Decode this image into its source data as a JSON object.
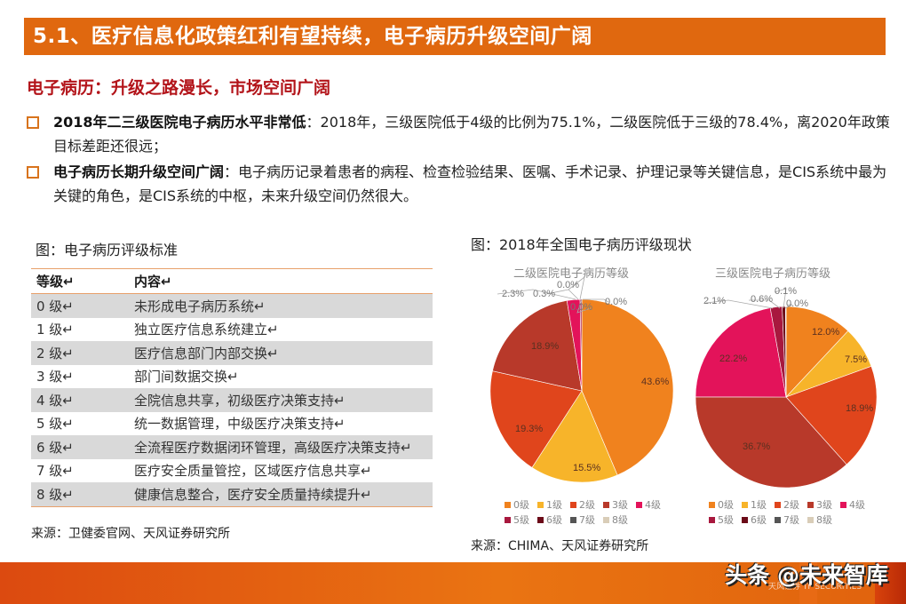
{
  "header": {
    "title": "5.1、医疗信息化政策红利有望持续，电子病历升级空间广阔"
  },
  "subtitle": "电子病历：升级之路漫长，市场空间广阔",
  "bullets": [
    {
      "bold": "2018年二三级医院电子病历水平非常低",
      "text": "：2018年，三级医院低于4级的比例为75.1%，二级医院低于三级的78.4%，离2020年政策目标差距还很远；"
    },
    {
      "bold": "电子病历长期升级空间广阔",
      "text": "：电子病历记录着患者的病程、检查检验结果、医嘱、手术记录、护理记录等关键信息，是CIS系统中最为关键的角色，是CIS系统的中枢，未来升级空间仍然很大。"
    }
  ],
  "left_figure": {
    "title": "图：电子病历评级标准",
    "columns": [
      "等级↵",
      "内容↵"
    ],
    "rows": [
      {
        "grade": "0 级↵",
        "content": "未形成电子病历系统↵"
      },
      {
        "grade": "1 级↵",
        "content": "独立医疗信息系统建立↵"
      },
      {
        "grade": "2 级↵",
        "content": "医疗信息部门内部交换↵"
      },
      {
        "grade": "3 级↵",
        "content": "部门间数据交换↵"
      },
      {
        "grade": "4 级↵",
        "content": "全院信息共享，初级医疗决策支持↵"
      },
      {
        "grade": "5 级↵",
        "content": "统一数据管理，中级医疗决策支持↵"
      },
      {
        "grade": "6 级↵",
        "content": "全流程医疗数据闭环管理，高级医疗决策支持↵"
      },
      {
        "grade": "7 级↵",
        "content": "医疗安全质量管控，区域医疗信息共享↵"
      },
      {
        "grade": "8 级↵",
        "content": "健康信息整合，医疗安全质量持续提升↵"
      }
    ],
    "source": "来源：卫健委官网、天风证券研究所"
  },
  "right_figure": {
    "title": "图：2018年全国电子病历评级现状",
    "source": "来源：CHIMA、天风证券研究所"
  },
  "chart_data": [
    {
      "type": "pie",
      "title": "二级医院电子病历等级",
      "categories": [
        "0级",
        "1级",
        "2级",
        "3级",
        "4级",
        "5级",
        "6级",
        "7级",
        "8级"
      ],
      "values": [
        43.6,
        15.5,
        19.3,
        18.9,
        2.3,
        0.3,
        0.0,
        0.0,
        0.0
      ],
      "labels": [
        "43.6%",
        "15.5%",
        "19.3%",
        "18.9%",
        "2.3%",
        "0.3%",
        "0.0%",
        "0.0%",
        "0.0%"
      ],
      "colors": [
        "#f0821e",
        "#f7b42a",
        "#e0451c",
        "#b8392a",
        "#e3135a",
        "#a8183e",
        "#6b0a18",
        "#555555",
        "#d9cdb8"
      ],
      "legend_position": "bottom"
    },
    {
      "type": "pie",
      "title": "三级医院电子病历等级",
      "categories": [
        "0级",
        "1级",
        "2级",
        "3级",
        "4级",
        "5级",
        "6级",
        "7级",
        "8级"
      ],
      "values": [
        12.0,
        7.5,
        18.9,
        36.7,
        22.2,
        2.1,
        0.6,
        0.1,
        0.0
      ],
      "labels": [
        "12.0%",
        "7.5%",
        "18.9%",
        "36.7%",
        "22.2%",
        "2.1%",
        "0.6%",
        "0.1%",
        "0.0%"
      ],
      "colors": [
        "#f0821e",
        "#f7b42a",
        "#e0451c",
        "#b8392a",
        "#e3135a",
        "#a8183e",
        "#6b0a18",
        "#555555",
        "#d9cdb8"
      ],
      "legend_position": "bottom"
    }
  ],
  "footer": {
    "watermark": "头条 @未来智库",
    "logo_text": "天风证券 TF SECURITIES"
  }
}
